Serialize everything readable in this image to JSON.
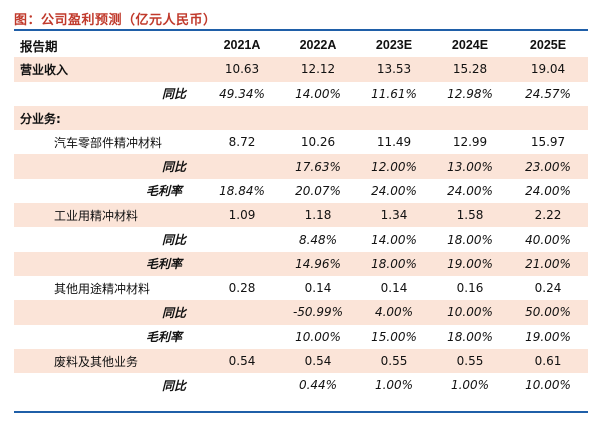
{
  "title": "图：公司盈利预测（亿元人民币）",
  "columns": [
    "报告期",
    "2021A",
    "2022A",
    "2023E",
    "2024E",
    "2025E"
  ],
  "rows": [
    {
      "label": "营业收入",
      "values": [
        "10.63",
        "12.12",
        "13.53",
        "15.28",
        "19.04"
      ]
    },
    {
      "label": "同比",
      "values": [
        "49.34%",
        "14.00%",
        "11.61%",
        "12.98%",
        "24.57%"
      ]
    },
    {
      "label": "分业务:",
      "values": [
        "",
        "",
        "",
        "",
        ""
      ]
    },
    {
      "label": "汽车零部件精冲材料",
      "values": [
        "8.72",
        "10.26",
        "11.49",
        "12.99",
        "15.97"
      ]
    },
    {
      "label": "同比",
      "values": [
        "",
        "17.63%",
        "12.00%",
        "13.00%",
        "23.00%"
      ]
    },
    {
      "label": "毛利率",
      "values": [
        "18.84%",
        "20.07%",
        "24.00%",
        "24.00%",
        "24.00%"
      ]
    },
    {
      "label": "工业用精冲材料",
      "values": [
        "1.09",
        "1.18",
        "1.34",
        "1.58",
        "2.22"
      ]
    },
    {
      "label": "同比",
      "values": [
        "",
        "8.48%",
        "14.00%",
        "18.00%",
        "40.00%"
      ]
    },
    {
      "label": "毛利率",
      "values": [
        "",
        "14.96%",
        "18.00%",
        "19.00%",
        "21.00%"
      ]
    },
    {
      "label": "其他用途精冲材料",
      "values": [
        "0.28",
        "0.14",
        "0.14",
        "0.16",
        "0.24"
      ]
    },
    {
      "label": "同比",
      "values": [
        "",
        "-50.99%",
        "4.00%",
        "10.00%",
        "50.00%"
      ]
    },
    {
      "label": "毛利率",
      "values": [
        "",
        "10.00%",
        "15.00%",
        "18.00%",
        "19.00%"
      ]
    },
    {
      "label": "废料及其他业务",
      "values": [
        "0.54",
        "0.54",
        "0.55",
        "0.55",
        "0.61"
      ]
    },
    {
      "label": "同比",
      "values": [
        "",
        "0.44%",
        "1.00%",
        "1.00%",
        "10.00%"
      ]
    }
  ],
  "colors": {
    "title": "#c0392b",
    "rule": "#1f5fa8",
    "shade": "#fbe4d8"
  }
}
